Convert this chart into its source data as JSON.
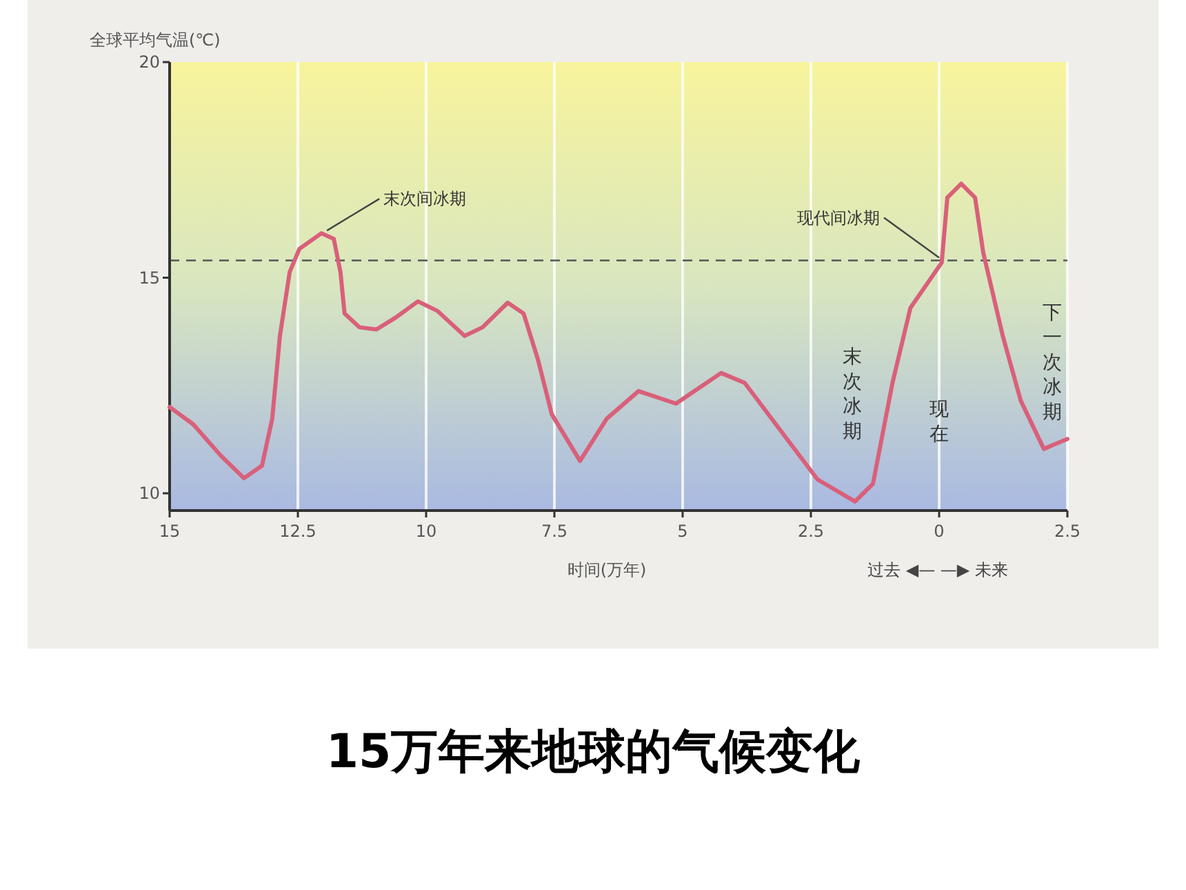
{
  "chart_data": {
    "type": "line",
    "title": "15万年来地球的气候变化",
    "xlabel": "时间(万年)",
    "ylabel": "全球平均气温(℃)",
    "xlim": [
      15,
      -2.5
    ],
    "xticks": [
      15,
      12.5,
      10,
      7.5,
      5,
      2.5,
      0,
      {
        "value": -2.5,
        "label": "2.5"
      }
    ],
    "ylim": [
      9.6,
      20
    ],
    "yticks": [
      10,
      15,
      20
    ],
    "grid": "x",
    "marker": "none",
    "line_style": "solid",
    "series": [
      {
        "color": "#d9607a",
        "x": [
          15,
          14.54,
          14.0,
          13.55,
          13.2,
          13.0,
          12.85,
          12.66,
          12.47,
          12.04,
          11.8,
          11.67,
          11.59,
          11.3,
          10.97,
          10.6,
          10.16,
          9.78,
          9.25,
          8.9,
          8.41,
          8.1,
          7.82,
          7.55,
          7.0,
          6.48,
          5.86,
          5.13,
          4.25,
          3.79,
          2.98,
          2.37,
          1.64,
          1.29,
          0.91,
          0.56,
          -0.05,
          -0.16,
          -0.43,
          -0.7,
          -0.86,
          -1.24,
          -1.59,
          -2.04,
          -2.5
        ],
        "values": [
          12.0,
          11.6,
          10.87,
          10.35,
          10.64,
          11.73,
          13.65,
          15.13,
          15.67,
          16.03,
          15.9,
          15.13,
          14.17,
          13.85,
          13.8,
          14.07,
          14.45,
          14.23,
          13.65,
          13.85,
          14.42,
          14.17,
          13.1,
          11.83,
          10.75,
          11.73,
          12.37,
          12.08,
          12.79,
          12.56,
          11.28,
          10.32,
          9.81,
          10.22,
          12.56,
          14.3,
          15.35,
          16.86,
          17.18,
          16.86,
          15.58,
          13.65,
          12.15,
          11.03,
          11.26
        ]
      }
    ],
    "ref_lines": [
      {
        "axis": "y",
        "value": 15.4,
        "color": "#555555",
        "line_style": "dashed"
      }
    ],
    "annotations": [
      {
        "text": "末次间冰期",
        "x": 12.04,
        "y": 16.03
      },
      {
        "text": "现代间冰期",
        "x": 0,
        "y": 15.4
      },
      "末次冰期",
      "现在",
      "下一次冰期",
      "过去 ◀—  —▶ 未来"
    ]
  }
}
